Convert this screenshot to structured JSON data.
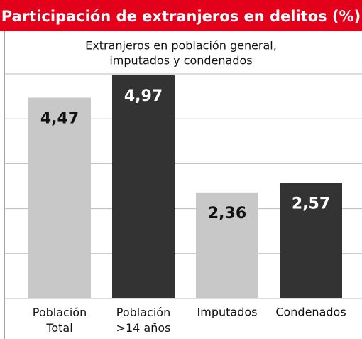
{
  "chart_data": {
    "type": "bar",
    "title": "Participación de extranjeros en delitos (%)",
    "subtitle": [
      "Extranjeros en población general,",
      "imputados y condenados"
    ],
    "categories": [
      "Población Total",
      "Población >14 años",
      "Imputados",
      "Condenados"
    ],
    "values": [
      4.47,
      4.97,
      2.36,
      2.57
    ],
    "value_labels": [
      "4,47",
      "4,97",
      "2,36",
      "2,57"
    ],
    "colors": [
      "#c8c8c8",
      "#333333",
      "#c8c8c8",
      "#333333"
    ],
    "ylim": [
      0,
      5
    ],
    "yticks": [
      0,
      1,
      2,
      3,
      4,
      5
    ],
    "grid": true
  }
}
